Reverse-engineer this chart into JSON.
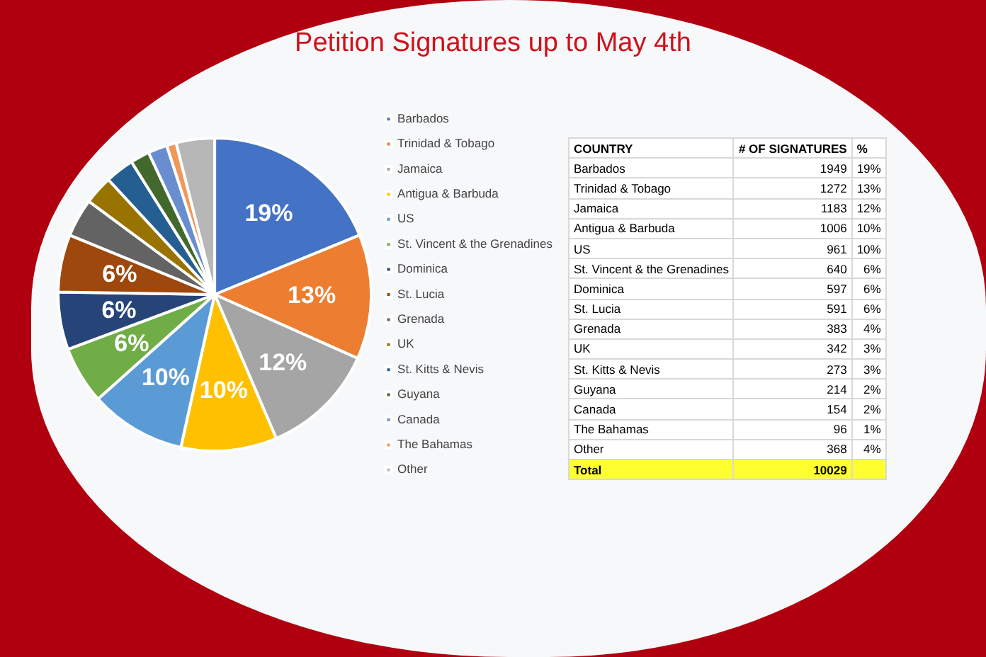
{
  "chart_data": [
    {
      "type": "pie",
      "title": "Petition Signatures up to May 4th",
      "categories": [
        "Barbados",
        "Trinidad & Tobago",
        "Jamaica",
        "Antigua & Barbuda",
        "US",
        "St. Vincent & the Grenadines",
        "Dominica",
        "St. Lucia",
        "Grenada",
        "UK",
        "St. Kitts & Nevis",
        "Guyana",
        "Canada",
        "The Bahamas",
        "Other"
      ],
      "values": [
        19,
        13,
        12,
        10,
        10,
        6,
        6,
        6,
        4,
        3,
        3,
        2,
        2,
        1,
        4
      ],
      "value_labels": [
        "19%",
        "13%",
        "12%",
        "10%",
        "10%",
        "6%",
        "6%",
        "6%",
        null,
        null,
        null,
        null,
        null,
        null,
        null
      ],
      "colors": [
        "#4472c4",
        "#ed7d31",
        "#a5a5a5",
        "#ffc000",
        "#5b9bd5",
        "#70ad47",
        "#264478",
        "#9e480e",
        "#636363",
        "#997300",
        "#255e91",
        "#43682b",
        "#698ed0",
        "#f1975a",
        "#b7b7b7"
      ],
      "legend": "right"
    },
    {
      "type": "other",
      "categories": [
        "Barbados",
        "Trinidad & Tobago",
        "Jamaica",
        "Antigua & Barbuda",
        "US",
        "St. Vincent & the Grenadines",
        "Dominica",
        "St. Lucia",
        "Grenada",
        "UK",
        "St. Kitts & Nevis",
        "Guyana",
        "Canada",
        "The Bahamas",
        "Other"
      ],
      "values": [
        1949,
        1272,
        1183,
        1006,
        961,
        640,
        597,
        591,
        383,
        342,
        273,
        214,
        154,
        96,
        368
      ],
      "data_labels": true,
      "totals": [
        "10029"
      ],
      "annotations": [
        "COUNTRY",
        "# OF SIGNATURES",
        "%",
        "Total",
        "19%",
        "13%",
        "12%",
        "10%",
        "10%",
        "6%",
        "6%",
        "6%",
        "4%",
        "3%",
        "3%",
        "2%",
        "2%",
        "1%",
        "4%"
      ]
    }
  ]
}
